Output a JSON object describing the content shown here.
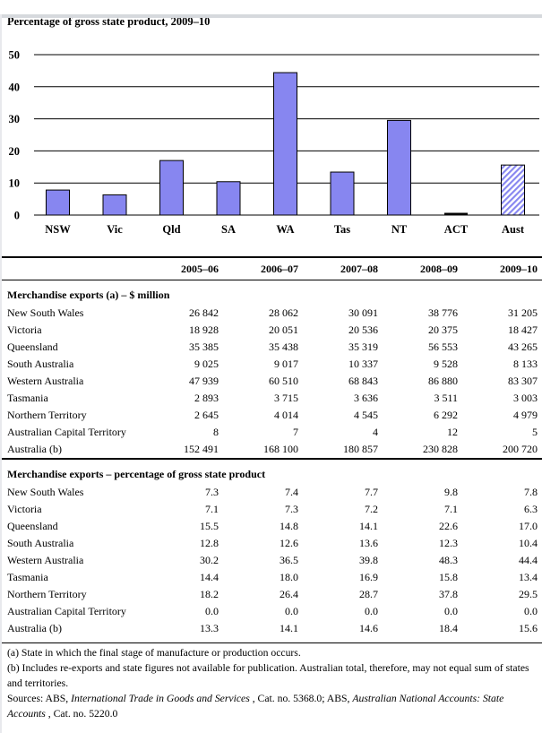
{
  "chart_data": {
    "type": "bar",
    "title": "Percentage of gross state product, 2009–10",
    "categories": [
      "NSW",
      "Vic",
      "Qld",
      "SA",
      "WA",
      "Tas",
      "NT",
      "ACT",
      "Aust"
    ],
    "values": [
      7.8,
      6.3,
      17.0,
      10.4,
      44.4,
      13.4,
      29.5,
      0.0,
      15.6
    ],
    "hatched_categories": [
      "Aust"
    ],
    "xlabel": "",
    "ylabel": "",
    "ylim": [
      0,
      50
    ],
    "yticks": [
      0,
      10,
      20,
      30,
      40,
      50
    ],
    "grid": true,
    "legend": false,
    "bar_color": "#8786f0",
    "bar_border_color": "#000000"
  },
  "table": {
    "year_columns": [
      "2005–06",
      "2006–07",
      "2007–08",
      "2008–09",
      "2009–10"
    ],
    "sections": [
      {
        "header": "Merchandise exports (a) – $ million",
        "rows": [
          {
            "label": "New South Wales",
            "values": [
              "26 842",
              "28 062",
              "30 091",
              "38 776",
              "31 205"
            ]
          },
          {
            "label": "Victoria",
            "values": [
              "18 928",
              "20 051",
              "20 536",
              "20 375",
              "18 427"
            ]
          },
          {
            "label": "Queensland",
            "values": [
              "35 385",
              "35 438",
              "35 319",
              "56 553",
              "43 265"
            ]
          },
          {
            "label": "South Australia",
            "values": [
              "9 025",
              "9 017",
              "10 337",
              "9 528",
              "8 133"
            ]
          },
          {
            "label": "Western Australia",
            "values": [
              "47 939",
              "60 510",
              "68 843",
              "86 880",
              "83 307"
            ]
          },
          {
            "label": "Tasmania",
            "values": [
              "2 893",
              "3 715",
              "3 636",
              "3 511",
              "3 003"
            ]
          },
          {
            "label": "Northern Territory",
            "values": [
              "2 645",
              "4 014",
              "4 545",
              "6 292",
              "4 979"
            ]
          },
          {
            "label": "Australian Capital Territory",
            "values": [
              "8",
              "7",
              "4",
              "12",
              "5"
            ]
          },
          {
            "label": "Australia (b)",
            "values": [
              "152 491",
              "168 100",
              "180 857",
              "230 828",
              "200 720"
            ]
          }
        ]
      },
      {
        "header": "Merchandise exports – percentage of gross state product",
        "rows": [
          {
            "label": "New South Wales",
            "values": [
              "7.3",
              "7.4",
              "7.7",
              "9.8",
              "7.8"
            ]
          },
          {
            "label": "Victoria",
            "values": [
              "7.1",
              "7.3",
              "7.2",
              "7.1",
              "6.3"
            ]
          },
          {
            "label": "Queensland",
            "values": [
              "15.5",
              "14.8",
              "14.1",
              "22.6",
              "17.0"
            ]
          },
          {
            "label": "South Australia",
            "values": [
              "12.8",
              "12.6",
              "13.6",
              "12.3",
              "10.4"
            ]
          },
          {
            "label": "Western Australia",
            "values": [
              "30.2",
              "36.5",
              "39.8",
              "48.3",
              "44.4"
            ]
          },
          {
            "label": "Tasmania",
            "values": [
              "14.4",
              "18.0",
              "16.9",
              "15.8",
              "13.4"
            ]
          },
          {
            "label": "Northern Territory",
            "values": [
              "18.2",
              "26.4",
              "28.7",
              "37.8",
              "29.5"
            ]
          },
          {
            "label": "Australian Capital Territory",
            "values": [
              "0.0",
              "0.0",
              "0.0",
              "0.0",
              "0.0"
            ]
          },
          {
            "label": "Australia (b)",
            "values": [
              "13.3",
              "14.1",
              "14.6",
              "18.4",
              "15.6"
            ]
          }
        ]
      }
    ]
  },
  "footnotes": {
    "a": "(a) State in which the final stage of manufacture or production occurs.",
    "b": "(b) Includes re-exports and state figures not available for publication. Australian total, therefore, may not equal sum of states and territories.",
    "sources": {
      "prefix": "Sources: ABS, ",
      "title1": "International Trade in Goods and Services",
      "mid": " , Cat. no. 5368.0; ABS, ",
      "title2": "Australian National Accounts: State Accounts",
      "suffix": " , Cat. no. 5220.0"
    }
  }
}
